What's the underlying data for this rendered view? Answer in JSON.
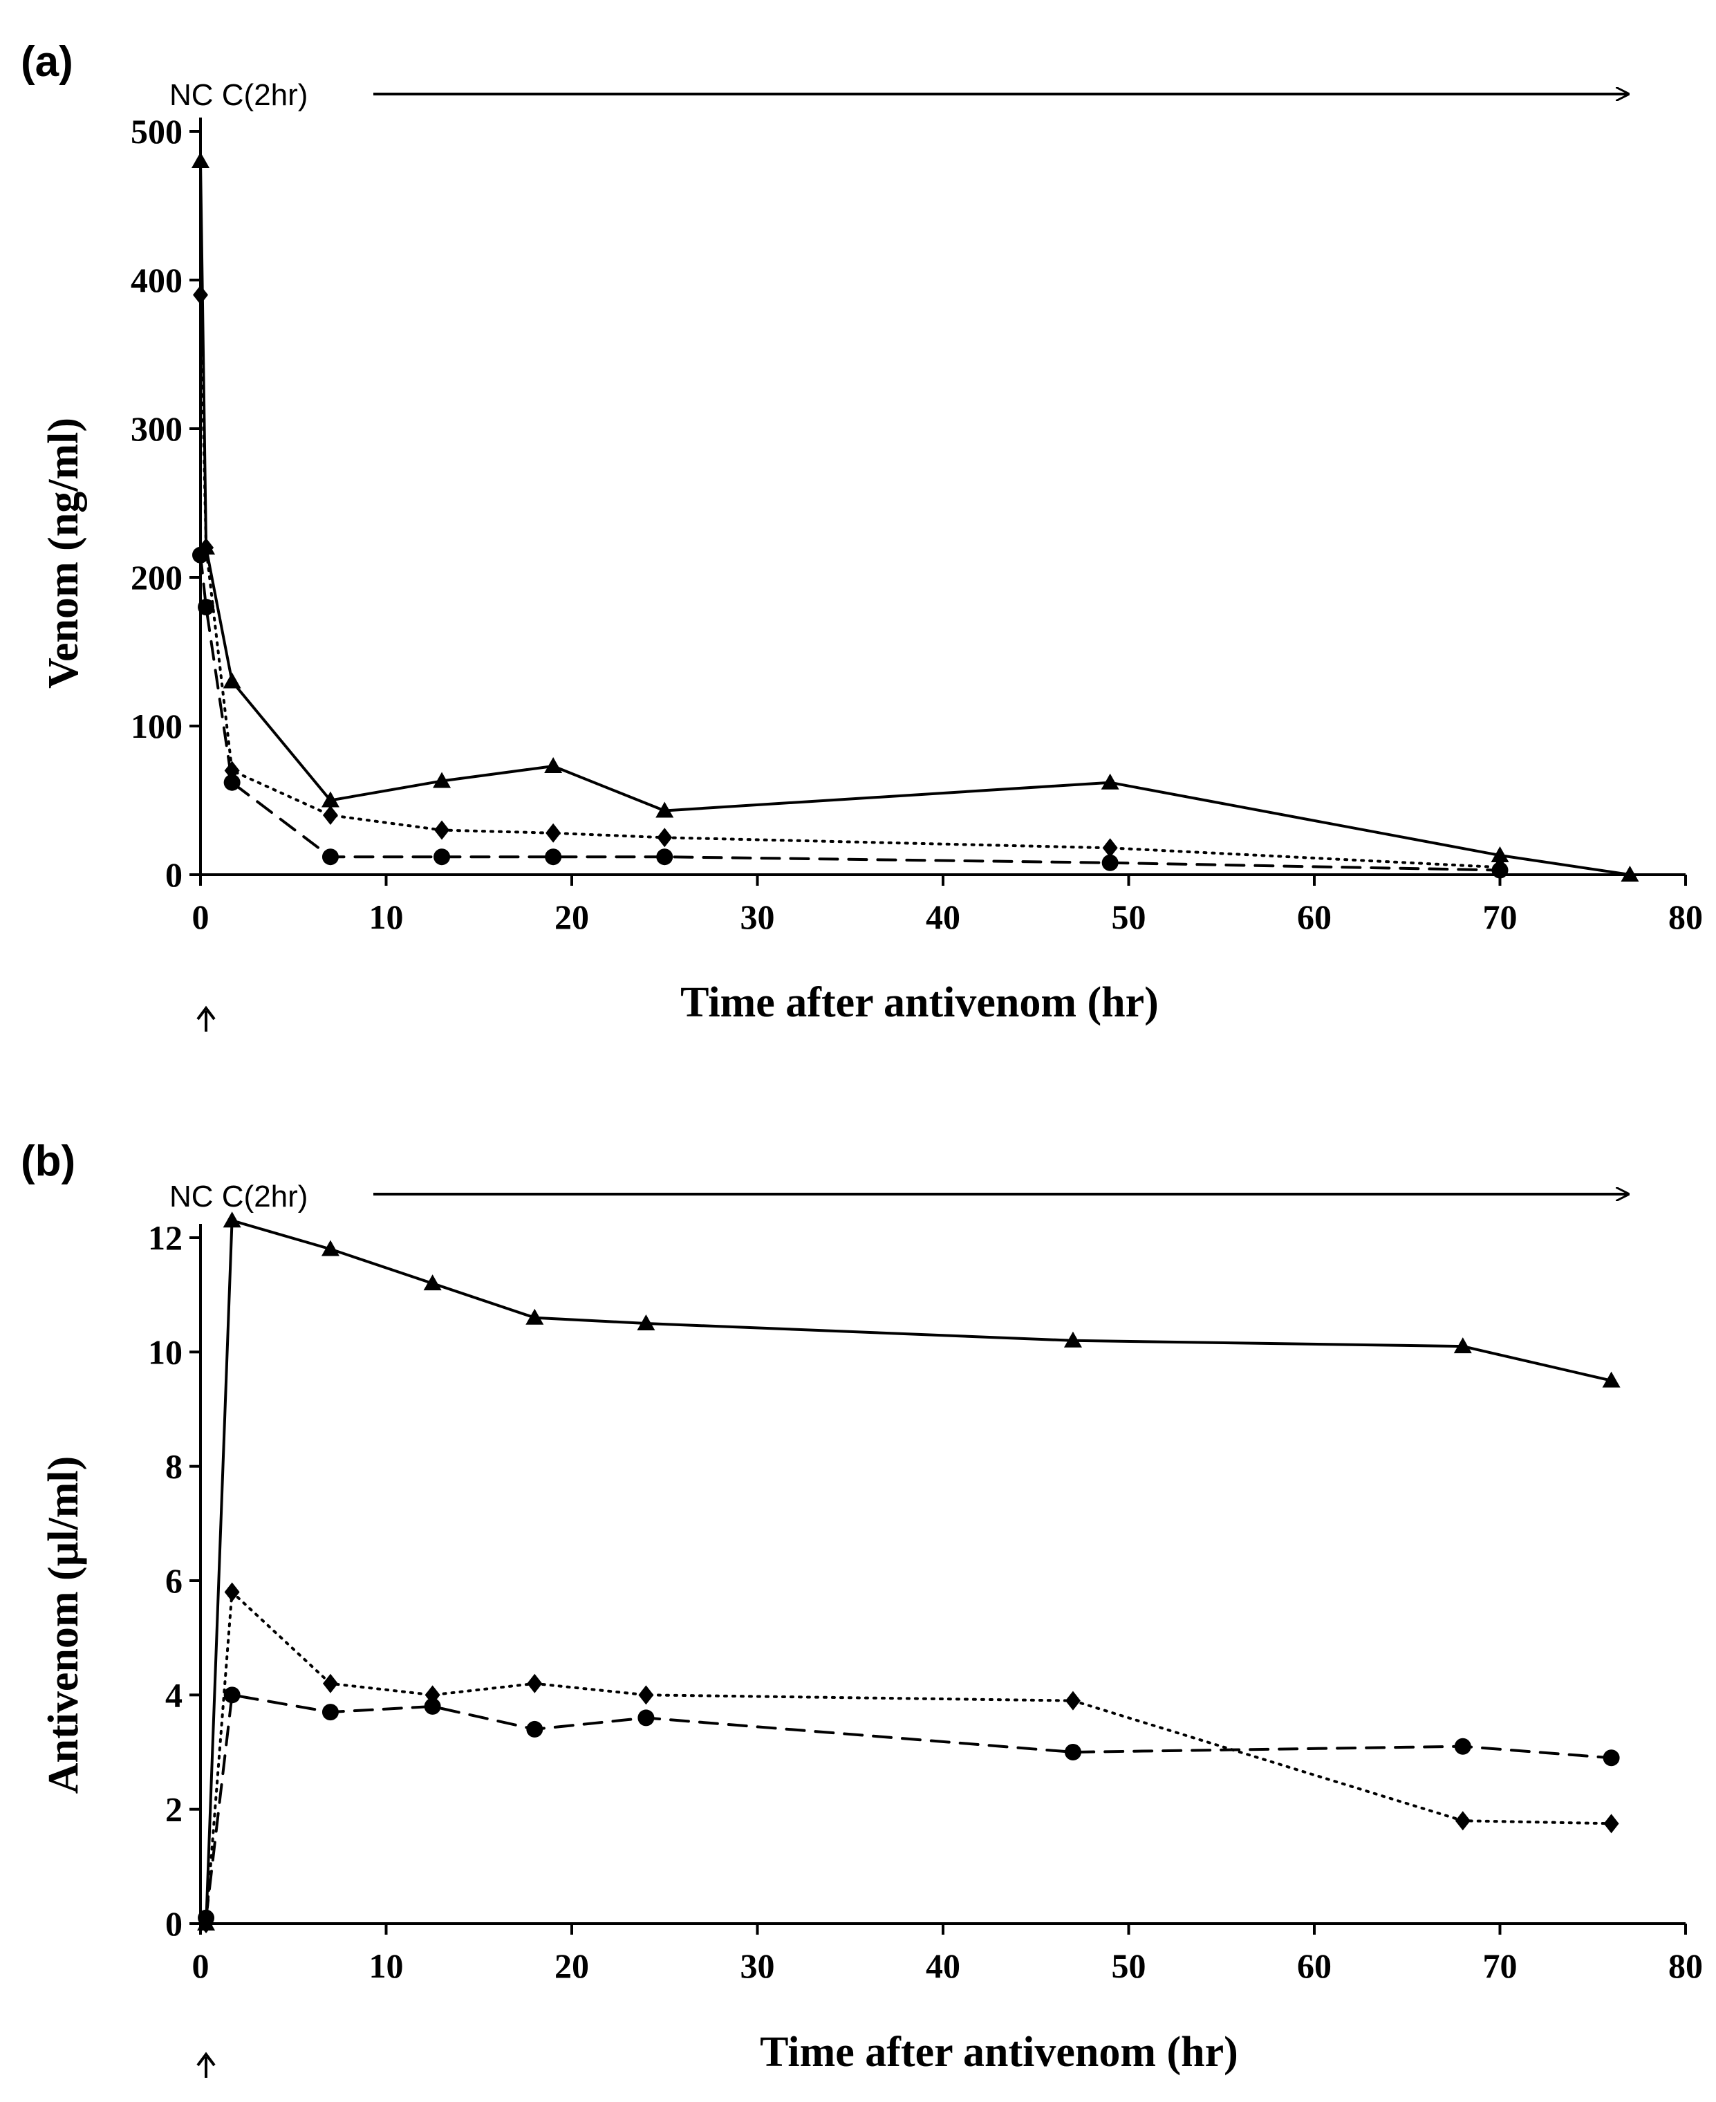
{
  "chart_data": [
    {
      "type": "line",
      "panel_label": "(a)",
      "annotation": "NC C(2hr)",
      "xlabel": "Time after  antivenom (hr)",
      "ylabel": "Venom (ng/ml)",
      "xlim": [
        0,
        80
      ],
      "ylim": [
        0,
        500
      ],
      "xticks": [
        0,
        10,
        20,
        30,
        40,
        50,
        60,
        70,
        80
      ],
      "yticks": [
        0,
        100,
        200,
        300,
        400,
        500
      ],
      "grid": false,
      "series": [
        {
          "name": "triangle-solid",
          "marker": "triangle",
          "line_style": "solid",
          "x": [
            0,
            0.3,
            1.7,
            7,
            13,
            19,
            25,
            49,
            70,
            77
          ],
          "y": [
            480,
            220,
            130,
            50,
            63,
            73,
            43,
            62,
            13,
            0
          ]
        },
        {
          "name": "diamond-dotted",
          "marker": "diamond",
          "line_style": "dotted",
          "x": [
            0,
            0.3,
            1.7,
            7,
            13,
            19,
            25,
            49,
            70
          ],
          "y": [
            390,
            220,
            70,
            40,
            30,
            28,
            25,
            18,
            5
          ]
        },
        {
          "name": "circle-dashed",
          "marker": "circle",
          "line_style": "dashed",
          "x": [
            0,
            0.3,
            1.7,
            7,
            13,
            19,
            25,
            49,
            70
          ],
          "y": [
            215,
            180,
            62,
            12,
            12,
            12,
            12,
            8,
            3
          ]
        }
      ]
    },
    {
      "type": "line",
      "panel_label": "(b)",
      "annotation": "NC C(2hr)",
      "xlabel": "Time after antivenom (hr)",
      "ylabel": "Antivenom (µl/ml)",
      "xlim": [
        0,
        80
      ],
      "ylim": [
        0,
        12
      ],
      "xticks": [
        0,
        10,
        20,
        30,
        40,
        50,
        60,
        70,
        80
      ],
      "yticks": [
        0,
        2,
        4,
        6,
        8,
        10,
        12
      ],
      "grid": false,
      "series": [
        {
          "name": "triangle-solid",
          "marker": "triangle",
          "line_style": "solid",
          "x": [
            0.3,
            1.7,
            7,
            12.5,
            18,
            24,
            47,
            68,
            76
          ],
          "y": [
            0,
            12.3,
            11.8,
            11.2,
            10.6,
            10.5,
            10.2,
            10.1,
            9.5
          ]
        },
        {
          "name": "diamond-dotted",
          "marker": "diamond",
          "line_style": "dotted",
          "x": [
            0.3,
            1.7,
            7,
            12.5,
            18,
            24,
            47,
            68,
            76
          ],
          "y": [
            0,
            5.8,
            4.2,
            4.0,
            4.2,
            4.0,
            3.9,
            1.8,
            1.75
          ]
        },
        {
          "name": "circle-dashed",
          "marker": "circle",
          "line_style": "dashed",
          "x": [
            0.3,
            1.7,
            7,
            12.5,
            18,
            24,
            47,
            68,
            76
          ],
          "y": [
            0.1,
            4.0,
            3.7,
            3.8,
            3.4,
            3.6,
            3.0,
            3.1,
            2.9
          ]
        }
      ]
    }
  ]
}
